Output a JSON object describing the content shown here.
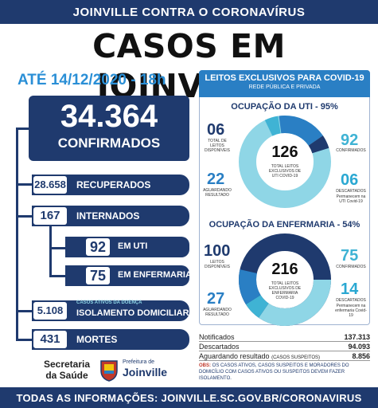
{
  "header": {
    "banner": "JOINVILLE CONTRA O CORONAVÍRUS",
    "title": "CASOS EM JOINVILLE",
    "date": "ATÉ 14/12/2020 - 18h"
  },
  "stats": {
    "confirmed": {
      "value": "34.364",
      "label": "CONFIRMADOS"
    },
    "recovered": {
      "value": "28.658",
      "label": "RECUPERADOS"
    },
    "hospitalized": {
      "value": "167",
      "label": "INTERNADOS"
    },
    "uti": {
      "value": "92",
      "label": "EM UTI"
    },
    "ward": {
      "value": "75",
      "label": "EM ENFERMARIA"
    },
    "home": {
      "value": "5.108",
      "sublabel": "CASOS ATIVOS DA DOENÇA",
      "label": "ISOLAMENTO DOMICILIAR"
    },
    "deaths": {
      "value": "431",
      "label": "MORTES"
    }
  },
  "leitos": {
    "title": "LEITOS EXCLUSIVOS PARA COVID-19",
    "subtitle": "REDE PÚBLICA E PRIVADA",
    "uti": {
      "title": "OCUPAÇÃO DA UTI - 95%",
      "total": "126",
      "total_label": "TOTAL LEITOS EXCLUSIVOS DE UTI COVID-19",
      "free": {
        "value": "06",
        "label": "TOTAL DE LEITOS DISPONÍVEIS"
      },
      "waiting": {
        "value": "22",
        "label": "AGUARDANDO RESULTADO"
      },
      "confirmed": {
        "value": "92",
        "label": "CONFIRMADOS"
      },
      "discarded": {
        "value": "06",
        "label": "DESCARTADOS",
        "note": "Permanecem na UTI Covid-19"
      }
    },
    "ward": {
      "title": "OCUPAÇÃO DA ENFERMARIA - 54%",
      "total": "216",
      "total_label": "TOTAL LEITOS EXCLUSIVOS DE ENFERMARIA COVID-19",
      "free": {
        "value": "100",
        "label": "LEITOS DISPONÍVEIS"
      },
      "waiting": {
        "value": "27",
        "label": "AGUARDANDO RESULTADO"
      },
      "confirmed": {
        "value": "75",
        "label": "CONFIRMADOS"
      },
      "discarded": {
        "value": "14",
        "label": "DESCARTADOS",
        "note": "Permanecem na enfermaria Covid-19"
      }
    }
  },
  "table": {
    "rows": [
      {
        "label": "Notificados",
        "value": "137.313"
      },
      {
        "label": "Descartados",
        "value": "94.093"
      },
      {
        "label": "Aguardando resultado",
        "note": "(CASOS SUSPEITOS)",
        "value": "8.856"
      }
    ]
  },
  "obs": {
    "prefix": "OBS:",
    "text": "OS CASOS ATIVOS, CASOS SUSPEITOS E MORADORES DO DOMICÍLIO COM CASOS ATIVOS OU SUSPEITOS DEVEM FAZER ISOLAMENTO."
  },
  "footer": {
    "secretaria_1": "Secretaria",
    "secretaria_2": "da Saúde",
    "prefeitura_small": "Prefeitura de",
    "prefeitura_big": "Joinville",
    "info": "TODAS AS INFORMAÇÕES: JOINVILLE.SC.GOV.BR/CORONAVIRUS"
  },
  "colors": {
    "navy": "#1f3a6e",
    "blue": "#2a7fc4",
    "light": "#3fb3d4",
    "pale": "#8fd6e6",
    "cyan_accent": "#2aa8d2"
  }
}
